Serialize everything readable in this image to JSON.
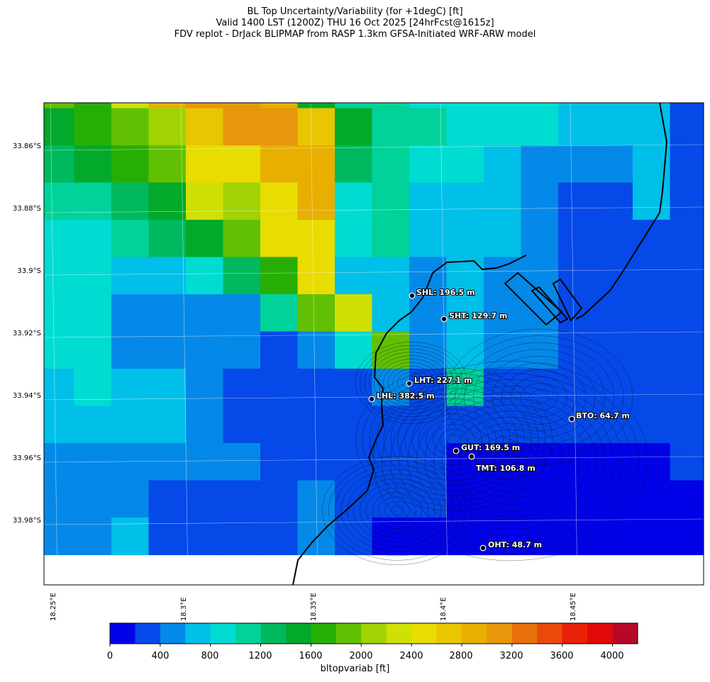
{
  "title": {
    "line1": "BL Top Uncertainty/Variability (for +1degC) [ft]",
    "line2": "Valid 1400 LST (1200Z) THU 16 Oct 2025 [24hrFcst@1615z]",
    "line3": "FDV replot - DrJack BLIPMAP from RASP 1.3km GFSA-Initiated WRF-ARW model"
  },
  "lat_labels": [
    "33.86°S",
    "33.88°S",
    "33.9°S",
    "33.92°S",
    "33.94°S",
    "33.96°S",
    "33.98°S"
  ],
  "lon_labels": [
    "18.25°E",
    "18.3°E",
    "18.35°E",
    "18.4°E",
    "18.45°E"
  ],
  "stations": [
    {
      "id": "SHL",
      "label": "SHL: 196.5 m"
    },
    {
      "id": "SHT",
      "label": "SHT: 129.7 m"
    },
    {
      "id": "LHT",
      "label": "LHT: 227.1 m"
    },
    {
      "id": "LHL",
      "label": "LHL: 382.5 m"
    },
    {
      "id": "BTO",
      "label": "BTO: 64.7 m"
    },
    {
      "id": "GUT",
      "label": "GUT: 169.5 m"
    },
    {
      "id": "TMT",
      "label": "TMT: 106.8 m"
    },
    {
      "id": "OHT",
      "label": "OHT: 48.7 m"
    }
  ],
  "colorbar": {
    "title": "bltopvariab [ft]",
    "tick_labels": [
      "0",
      "400",
      "800",
      "1200",
      "1600",
      "2000",
      "2400",
      "2800",
      "3200",
      "3600",
      "4000"
    ],
    "colors": [
      "#0202e8",
      "#0549e8",
      "#0589e8",
      "#00bfe8",
      "#00dcd2",
      "#00d29a",
      "#00b85e",
      "#02a92a",
      "#26ae06",
      "#62c004",
      "#a0d204",
      "#cfe004",
      "#e8dc00",
      "#e8c600",
      "#e8ae00",
      "#e8960c",
      "#e8700a",
      "#e84a0a",
      "#e82208",
      "#e00808",
      "#b80828"
    ]
  },
  "field": {
    "ncols": 18,
    "nrows": 13,
    "grid": [
      [
        9,
        8,
        11,
        14,
        15,
        15,
        14,
        7,
        5,
        5,
        4,
        4,
        4,
        4,
        3,
        3,
        3,
        1
      ],
      [
        7,
        8,
        9,
        10,
        13,
        15,
        15,
        13,
        7,
        5,
        5,
        4,
        4,
        4,
        3,
        3,
        3,
        1
      ],
      [
        6,
        7,
        8,
        9,
        12,
        12,
        14,
        14,
        6,
        5,
        4,
        4,
        3,
        2,
        2,
        2,
        3,
        1
      ],
      [
        5,
        5,
        6,
        7,
        11,
        10,
        12,
        14,
        4,
        5,
        3,
        3,
        3,
        2,
        1,
        1,
        3,
        1
      ],
      [
        4,
        4,
        5,
        6,
        7,
        9,
        12,
        12,
        4,
        5,
        3,
        3,
        3,
        2,
        1,
        1,
        1,
        1
      ],
      [
        4,
        4,
        3,
        3,
        4,
        6,
        8,
        12,
        3,
        3,
        2,
        3,
        2,
        2,
        1,
        1,
        1,
        1
      ],
      [
        4,
        4,
        2,
        2,
        2,
        2,
        5,
        9,
        11,
        3,
        2,
        3,
        2,
        2,
        1,
        1,
        1,
        1
      ],
      [
        4,
        4,
        2,
        2,
        2,
        2,
        1,
        2,
        4,
        9,
        2,
        3,
        2,
        2,
        1,
        1,
        1,
        1
      ],
      [
        3,
        4,
        3,
        3,
        2,
        1,
        1,
        1,
        1,
        2,
        1,
        5,
        1,
        1,
        1,
        1,
        1,
        1
      ],
      [
        3,
        3,
        3,
        3,
        2,
        1,
        1,
        1,
        1,
        1,
        1,
        1,
        1,
        1,
        1,
        1,
        1,
        1
      ],
      [
        2,
        2,
        2,
        2,
        2,
        2,
        1,
        1,
        1,
        1,
        1,
        0,
        0,
        0,
        0,
        0,
        0,
        1
      ],
      [
        2,
        2,
        2,
        1,
        1,
        1,
        1,
        2,
        1,
        1,
        1,
        0,
        0,
        0,
        0,
        0,
        0,
        0
      ],
      [
        2,
        2,
        3,
        1,
        1,
        1,
        1,
        2,
        1,
        0,
        0,
        0,
        0,
        0,
        0,
        0,
        0,
        0
      ]
    ],
    "units": "ft",
    "value_bins": [
      0,
      200,
      400,
      600,
      800,
      1000,
      1200,
      1400,
      1600,
      1800,
      2000,
      2200,
      2400,
      2600,
      2800,
      3000,
      3200,
      3400,
      3600,
      3800,
      4000,
      4200
    ]
  }
}
